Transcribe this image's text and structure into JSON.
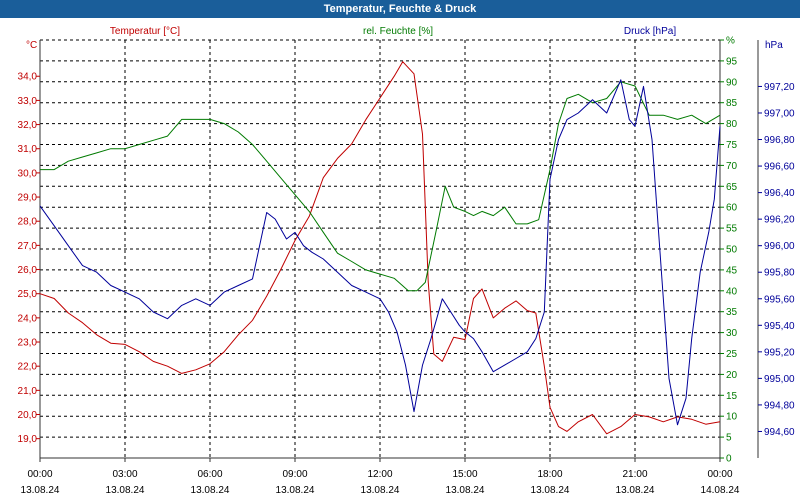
{
  "title": "Temperatur, Feuchte & Druck",
  "colors": {
    "title_bar": "#1a5e9a",
    "temperature": "#c00000",
    "humidity": "#007a00",
    "pressure": "#00009a",
    "grid": "#000000",
    "axis": "#333333"
  },
  "chart_data": {
    "type": "line",
    "x_unit": "hours since 13.08.24 00:00",
    "xlim": [
      0,
      24
    ],
    "x_ticks": [
      {
        "hour": 0,
        "time": "00:00",
        "date": "13.08.24"
      },
      {
        "hour": 3,
        "time": "03:00",
        "date": "13.08.24"
      },
      {
        "hour": 6,
        "time": "06:00",
        "date": "13.08.24"
      },
      {
        "hour": 9,
        "time": "09:00",
        "date": "13.08.24"
      },
      {
        "hour": 12,
        "time": "12:00",
        "date": "13.08.24"
      },
      {
        "hour": 15,
        "time": "15:00",
        "date": "13.08.24"
      },
      {
        "hour": 18,
        "time": "18:00",
        "date": "13.08.24"
      },
      {
        "hour": 21,
        "time": "21:00",
        "date": "13.08.24"
      },
      {
        "hour": 24,
        "time": "00:00",
        "date": "14.08.24"
      }
    ],
    "axes": {
      "temperature": {
        "label": "Temperatur [°C]",
        "unit": "°C",
        "ylim": [
          18.2,
          35.5
        ],
        "ticks": [
          "34,0",
          "33,0",
          "32,0",
          "31,0",
          "30,0",
          "29,0",
          "28,0",
          "27,0",
          "26,0",
          "25,0",
          "24,0",
          "23,0",
          "22,0",
          "21,0",
          "20,0",
          "19,0"
        ],
        "tick_values": [
          34,
          33,
          32,
          31,
          30,
          29,
          28,
          27,
          26,
          25,
          24,
          23,
          22,
          21,
          20,
          19
        ]
      },
      "humidity": {
        "label": "rel. Feuchte [%]",
        "unit": "%",
        "ylim": [
          0,
          100
        ],
        "ticks": [
          "%",
          "95",
          "90",
          "85",
          "80",
          "75",
          "70",
          "65",
          "60",
          "55",
          "50",
          "45",
          "40",
          "35",
          "30",
          "25",
          "20",
          "15",
          "10",
          "5",
          "0"
        ],
        "tick_values": [
          100,
          95,
          90,
          85,
          80,
          75,
          70,
          65,
          60,
          55,
          50,
          45,
          40,
          35,
          30,
          25,
          20,
          15,
          10,
          5,
          0
        ]
      },
      "pressure": {
        "label": "Druck [hPa]",
        "unit": "hPa",
        "ylim": [
          994.4,
          997.55
        ],
        "ticks": [
          "997,20",
          "997,00",
          "996,80",
          "996,60",
          "996,40",
          "996,20",
          "996,00",
          "995,80",
          "995,60",
          "995,40",
          "995,20",
          "995,00",
          "994,80",
          "994,60"
        ],
        "tick_values": [
          997.2,
          997.0,
          996.8,
          996.6,
          996.4,
          996.2,
          996.0,
          995.8,
          995.6,
          995.4,
          995.2,
          995.0,
          994.8,
          994.6
        ]
      }
    },
    "series": [
      {
        "name": "Temperatur",
        "axis": "temperature",
        "color": "#c00000",
        "x": [
          0,
          0.5,
          1,
          1.5,
          2,
          2.5,
          3,
          3.5,
          4,
          4.5,
          5,
          5.5,
          6,
          6.5,
          7,
          7.5,
          8,
          8.5,
          9,
          9.5,
          10,
          10.5,
          11,
          11.5,
          12,
          12.5,
          12.8,
          13.2,
          13.5,
          13.7,
          13.9,
          14.2,
          14.6,
          15,
          15.3,
          15.6,
          16,
          16.4,
          16.8,
          17.2,
          17.5,
          17.8,
          18,
          18.3,
          18.6,
          19,
          19.5,
          20,
          20.5,
          21,
          21.5,
          22,
          22.5,
          23,
          23.5,
          24
        ],
        "values": [
          25.0,
          24.8,
          24.2,
          23.8,
          23.3,
          22.95,
          22.9,
          22.6,
          22.2,
          22.0,
          21.7,
          21.85,
          22.1,
          22.6,
          23.3,
          23.9,
          24.9,
          26.0,
          27.2,
          28.2,
          29.8,
          30.6,
          31.2,
          32.2,
          33.1,
          34.0,
          34.6,
          34.1,
          31.6,
          25.5,
          22.5,
          22.2,
          23.2,
          23.1,
          24.8,
          25.2,
          24.0,
          24.4,
          24.7,
          24.3,
          24.2,
          22.0,
          20.3,
          19.5,
          19.3,
          19.7,
          20.0,
          19.2,
          19.5,
          20.0,
          19.9,
          19.7,
          19.9,
          19.8,
          19.6,
          19.7
        ]
      },
      {
        "name": "rel. Feuchte",
        "axis": "humidity",
        "color": "#007a00",
        "x": [
          0,
          0.5,
          1,
          1.5,
          2,
          2.5,
          3,
          3.5,
          4,
          4.5,
          5,
          5.5,
          6,
          6.5,
          7,
          7.5,
          8,
          8.5,
          9,
          9.5,
          10,
          10.5,
          11,
          11.5,
          12,
          12.5,
          13,
          13.3,
          13.6,
          14,
          14.3,
          14.6,
          15,
          15.3,
          15.6,
          16,
          16.4,
          16.8,
          17.2,
          17.6,
          18,
          18.3,
          18.6,
          19,
          19.5,
          20,
          20.5,
          21,
          21.5,
          22,
          22.5,
          23,
          23.5,
          24
        ],
        "values": [
          69,
          69,
          71,
          72,
          73,
          74,
          74,
          75,
          76,
          77,
          81,
          81,
          81,
          80,
          78,
          75,
          71,
          67,
          63,
          59,
          54,
          49,
          47,
          45,
          44,
          43,
          40,
          40,
          42,
          55,
          65,
          60,
          59,
          58,
          59,
          58,
          60,
          56,
          56,
          57,
          69,
          80,
          86,
          87,
          85,
          86,
          90,
          89,
          82,
          82,
          81,
          82,
          80,
          82
        ]
      },
      {
        "name": "Druck",
        "axis": "pressure",
        "color": "#00009a",
        "x": [
          0,
          0.5,
          1,
          1.5,
          2,
          2.5,
          3,
          3.5,
          4,
          4.5,
          5,
          5.5,
          6,
          6.5,
          7,
          7.5,
          8,
          8.3,
          8.7,
          9,
          9.3,
          9.6,
          10,
          10.5,
          11,
          11.5,
          12,
          12.3,
          12.6,
          12.9,
          13.2,
          13.5,
          13.8,
          14,
          14.2,
          14.5,
          14.8,
          15,
          15.3,
          15.6,
          16,
          16.4,
          16.8,
          17.2,
          17.5,
          17.8,
          18,
          18.3,
          18.6,
          19,
          19.5,
          20,
          20.5,
          20.8,
          21,
          21.3,
          21.6,
          21.9,
          22.2,
          22.5,
          22.8,
          23,
          23.3,
          23.6,
          23.8,
          24
        ],
        "values": [
          996.3,
          996.15,
          996.0,
          995.85,
          995.8,
          995.7,
          995.65,
          995.6,
          995.5,
          995.45,
          995.55,
          995.6,
          995.55,
          995.65,
          995.7,
          995.75,
          996.25,
          996.2,
          996.05,
          996.1,
          996.0,
          995.95,
          995.9,
          995.8,
          995.7,
          995.65,
          995.6,
          995.5,
          995.35,
          995.1,
          994.75,
          995.1,
          995.3,
          995.45,
          995.6,
          995.5,
          995.4,
          995.35,
          995.3,
          995.2,
          995.05,
          995.1,
          995.15,
          995.2,
          995.3,
          995.5,
          996.5,
          996.8,
          996.95,
          997.0,
          997.1,
          997.0,
          997.25,
          996.95,
          996.9,
          997.2,
          996.8,
          995.9,
          995.0,
          994.65,
          994.85,
          995.3,
          995.8,
          996.1,
          996.35,
          996.9
        ]
      }
    ]
  }
}
